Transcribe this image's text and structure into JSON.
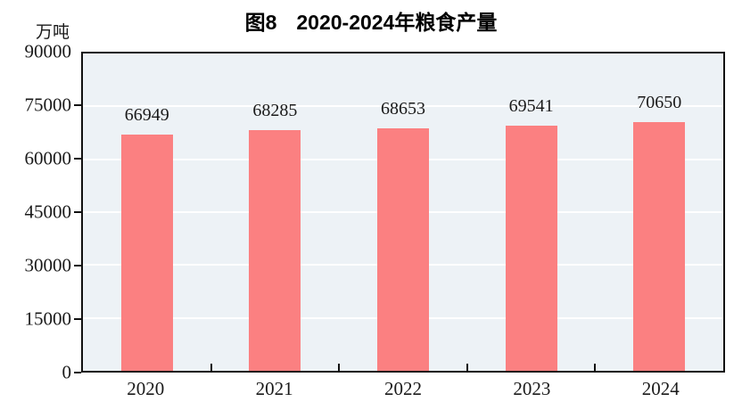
{
  "chart_data": {
    "type": "bar",
    "title_prefix": "图8",
    "title_main": "2020-2024年粮食产量",
    "unit_label": "万吨",
    "categories": [
      "2020",
      "2021",
      "2022",
      "2023",
      "2024"
    ],
    "values": [
      66949,
      68285,
      68653,
      69541,
      70650
    ],
    "value_labels": [
      "66949",
      "68285",
      "68653",
      "69541",
      "70650"
    ],
    "ylim": [
      0,
      90000
    ],
    "yticks": [
      0,
      15000,
      30000,
      45000,
      60000,
      75000,
      90000
    ],
    "grid": true,
    "legend": false,
    "colors": {
      "bar": "#FB8081",
      "plot_bg": "#EDF2F6",
      "gridline": "#FFFFFF",
      "axis": "#111111",
      "text": "#1a1a1a"
    }
  }
}
